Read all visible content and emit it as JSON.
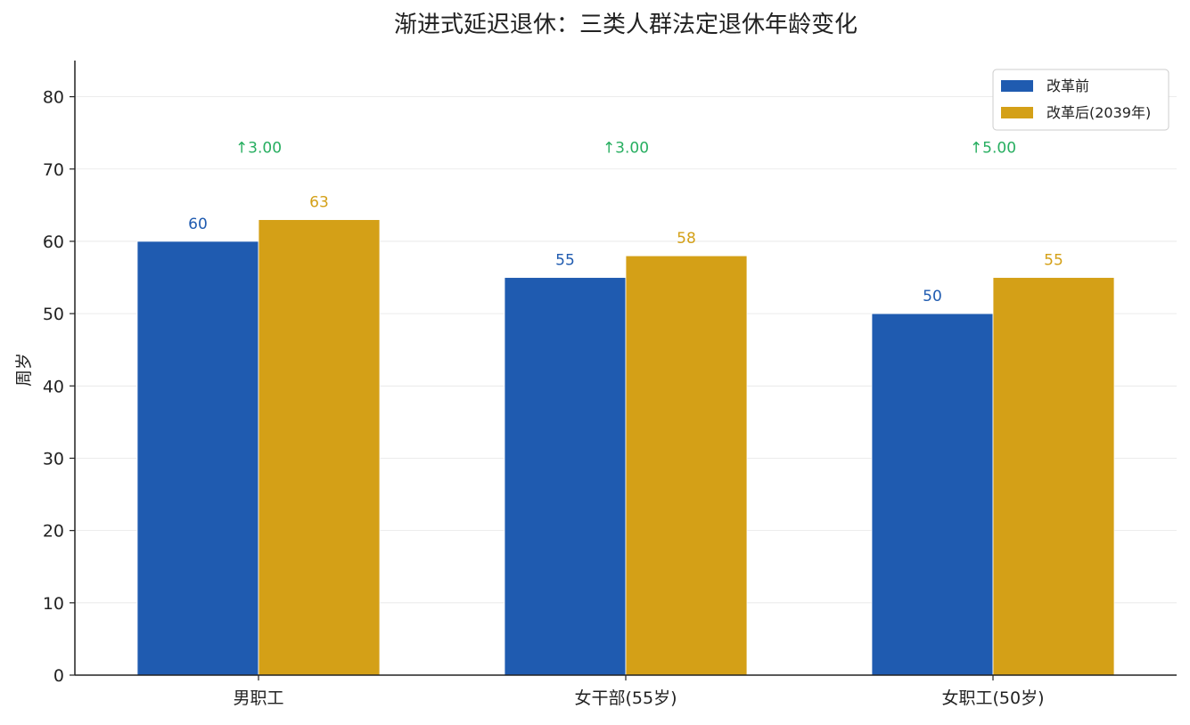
{
  "chart_data": {
    "type": "bar",
    "title": "渐进式延迟退休：三类人群法定退休年龄变化",
    "xlabel": "",
    "ylabel": "周岁",
    "categories": [
      "男职工",
      "女干部(55岁)",
      "女职工(50岁)"
    ],
    "series": [
      {
        "name": "改革前",
        "values": [
          60,
          55,
          50
        ],
        "color": "#1f5bb0"
      },
      {
        "name": "改革后(2039年)",
        "values": [
          63,
          58,
          55
        ],
        "color": "#d4a017"
      }
    ],
    "deltas": [
      "↑3.00",
      "↑3.00",
      "↑5.00"
    ],
    "delta_color": "#27ae60",
    "ylim": [
      0,
      85
    ],
    "yticks": [
      0,
      10,
      20,
      30,
      40,
      50,
      60,
      70,
      80
    ],
    "grid": true,
    "legend_position": "top-right"
  }
}
